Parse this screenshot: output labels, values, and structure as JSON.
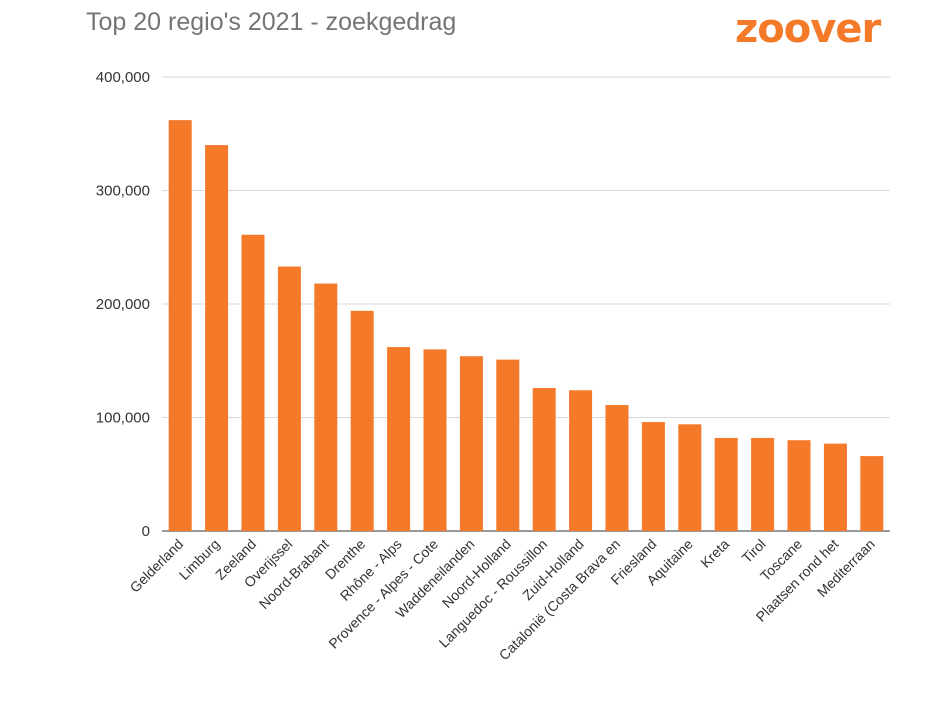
{
  "chart_data": {
    "type": "bar",
    "title": "Top 20 regio's 2021 - zoekgedrag",
    "brand": "zoover",
    "xlabel": "",
    "ylabel": "",
    "ylim": [
      0,
      400000
    ],
    "yticks": [
      0,
      100000,
      200000,
      300000,
      400000
    ],
    "ytick_labels": [
      "0",
      "100,000",
      "200,000",
      "300,000",
      "400,000"
    ],
    "grid": true,
    "legend": "none",
    "bar_color": "#f47a2a",
    "categories": [
      "Gelderland",
      "Limburg",
      "Zeeland",
      "Overijssel",
      "Noord-Brabant",
      "Drenthe",
      "Rhône - Alps",
      "Provence - Alpes - Cote",
      "Waddeneilanden",
      "Noord-Holland",
      "Languedoc - Roussillon",
      "Zuid-Holland",
      "Catalonië (Costa Brava en",
      "Friesland",
      "Aquitaine",
      "Kreta",
      "Tirol",
      "Toscane",
      "Plaatsen rond het",
      "Mediterraan"
    ],
    "values": [
      362000,
      340000,
      261000,
      233000,
      218000,
      194000,
      162000,
      160000,
      154000,
      151000,
      126000,
      124000,
      111000,
      96000,
      94000,
      82000,
      82000,
      80000,
      77000,
      66000
    ]
  }
}
